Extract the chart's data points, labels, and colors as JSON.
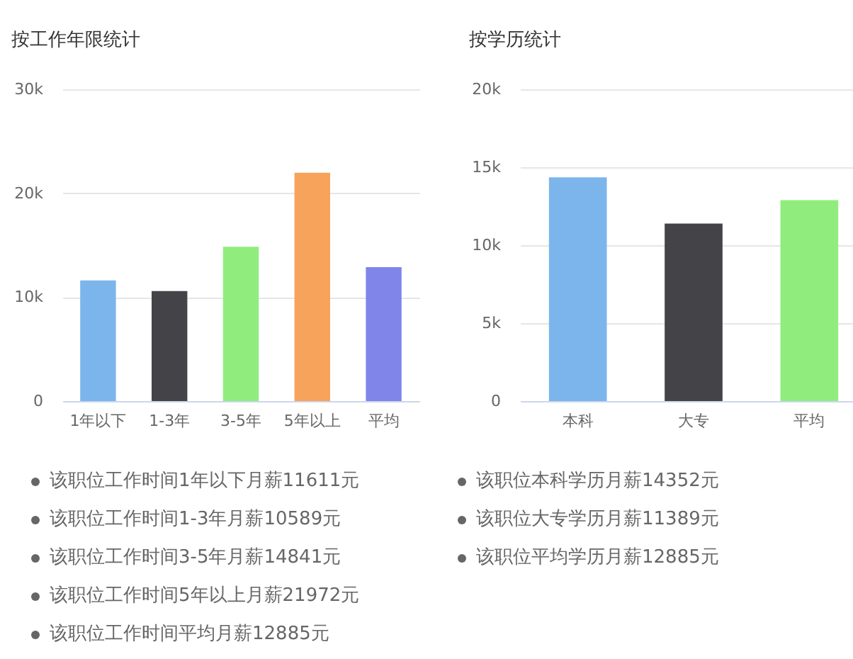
{
  "chart_data": [
    {
      "type": "bar",
      "title": "按工作年限统计",
      "categories": [
        "1年以下",
        "1-3年",
        "3-5年",
        "5年以上",
        "平均"
      ],
      "values": [
        11611,
        10589,
        14841,
        21972,
        12885
      ],
      "colors": [
        "#7cb5ec",
        "#434348",
        "#90ed7d",
        "#f7a35c",
        "#8085e9"
      ],
      "ylim": [
        0,
        30000
      ],
      "yticks": [
        {
          "value": 0,
          "label": "0"
        },
        {
          "value": 10000,
          "label": "10k"
        },
        {
          "value": 20000,
          "label": "20k"
        },
        {
          "value": 30000,
          "label": "30k"
        }
      ],
      "grid": "y",
      "annotations": [
        "该职位工作时间1年以下月薪11611元",
        "该职位工作时间1-3年月薪10589元",
        "该职位工作时间3-5年月薪14841元",
        "该职位工作时间5年以上月薪21972元",
        "该职位工作时间平均月薪12885元"
      ]
    },
    {
      "type": "bar",
      "title": "按学历统计",
      "categories": [
        "本科",
        "大专",
        "平均"
      ],
      "values": [
        14352,
        11389,
        12885
      ],
      "colors": [
        "#7cb5ec",
        "#434348",
        "#90ed7d"
      ],
      "ylim": [
        0,
        20000
      ],
      "yticks": [
        {
          "value": 0,
          "label": "0"
        },
        {
          "value": 5000,
          "label": "5k"
        },
        {
          "value": 10000,
          "label": "10k"
        },
        {
          "value": 15000,
          "label": "15k"
        },
        {
          "value": 20000,
          "label": "20k"
        }
      ],
      "grid": "y",
      "annotations": [
        "该职位本科学历月薪14352元",
        "该职位大专学历月薪11389元",
        "该职位平均学历月薪12885元"
      ]
    }
  ]
}
